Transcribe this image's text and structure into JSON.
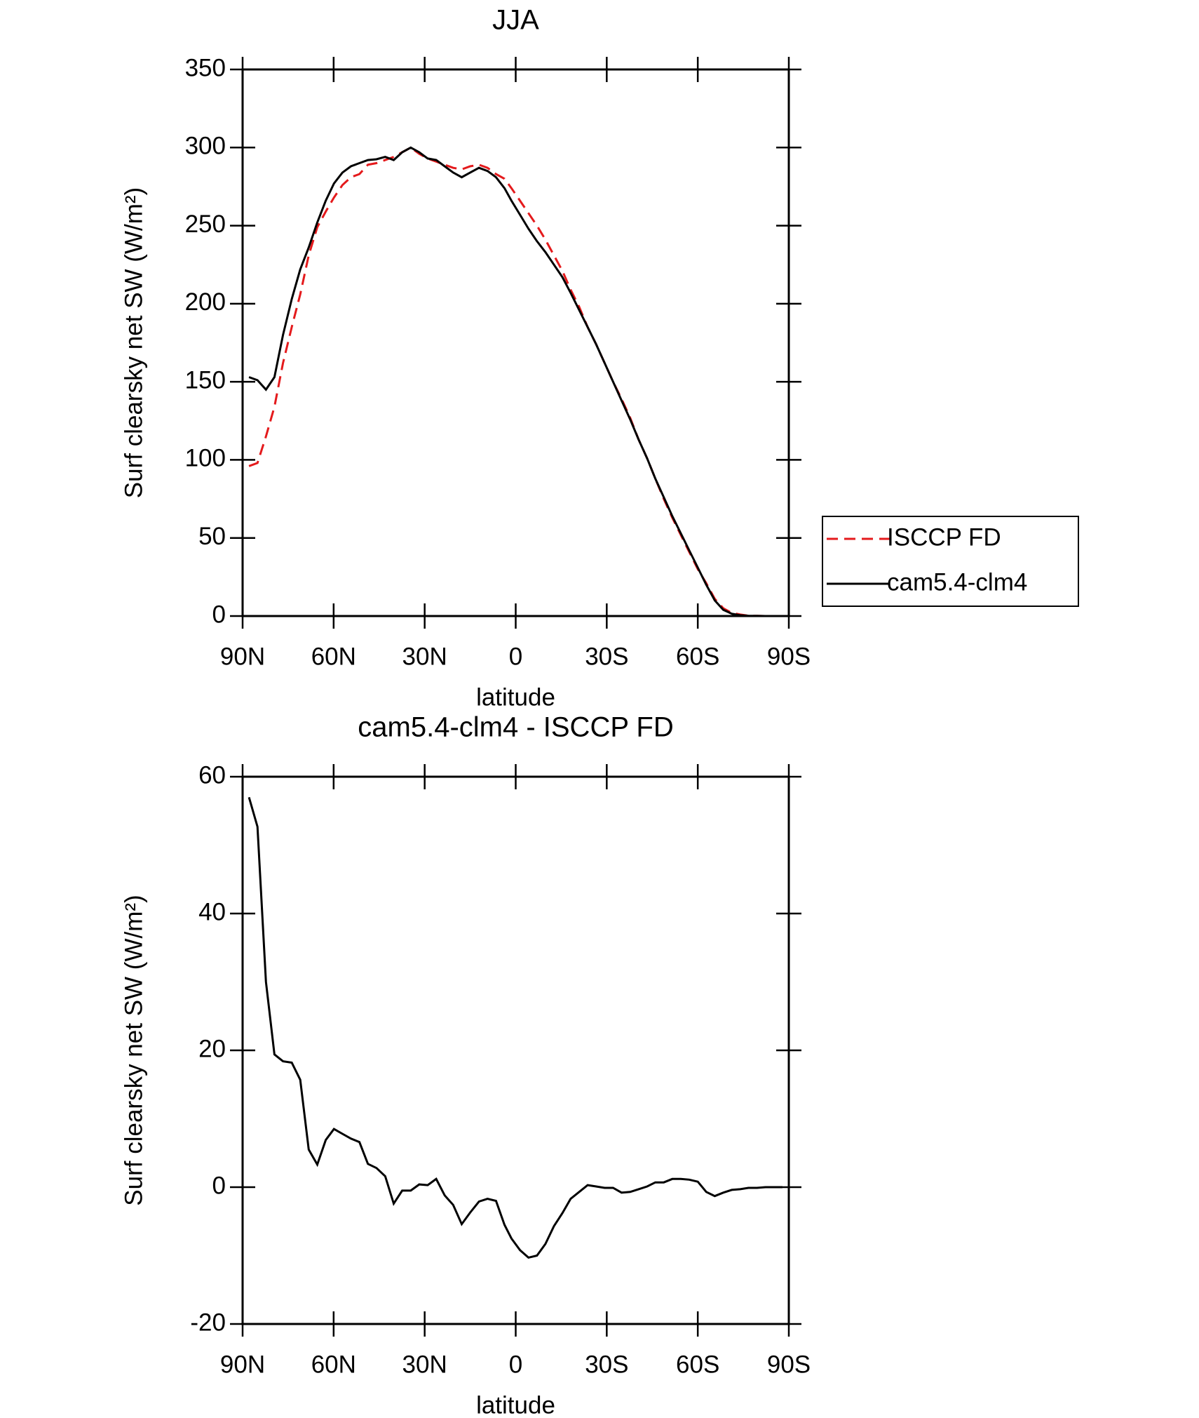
{
  "chart_data": [
    {
      "type": "line",
      "title": "JJA",
      "xlabel": "latitude",
      "ylabel": "Surf clearsky net SW (W/m²)",
      "x": [
        87.9,
        85.1,
        82.3,
        79.5,
        76.7,
        73.8,
        71.0,
        68.2,
        65.4,
        62.6,
        59.9,
        57.1,
        54.3,
        51.5,
        48.7,
        45.9,
        43.0,
        40.2,
        37.4,
        34.6,
        31.8,
        29.0,
        26.2,
        23.4,
        20.6,
        17.8,
        15.0,
        12.1,
        9.3,
        6.5,
        3.7,
        1.4,
        -1.4,
        -4.2,
        -7.0,
        -9.8,
        -12.6,
        -15.4,
        -18.1,
        -20.9,
        -23.7,
        -26.5,
        -29.3,
        -32.1,
        -34.9,
        -37.7,
        -40.5,
        -43.3,
        -46.0,
        -48.8,
        -51.6,
        -54.4,
        -57.2,
        -60.0,
        -62.8,
        -65.6,
        -68.4,
        -71.2,
        -74.0,
        -76.7,
        -79.5,
        -82.3,
        -85.1,
        -87.9
      ],
      "series": [
        {
          "name": "ISCCP FD",
          "color": "#e41a1c",
          "style": "dashed",
          "values": [
            96,
            98,
            115,
            134,
            162,
            185,
            206,
            231,
            249,
            259,
            268,
            276,
            281,
            283,
            289,
            290,
            292,
            294,
            297,
            300,
            296,
            293,
            291,
            289,
            287,
            286,
            288,
            289,
            287,
            283,
            280,
            274,
            266,
            258,
            250,
            241,
            231,
            221,
            209,
            198,
            185,
            174,
            162,
            150,
            139,
            127,
            113,
            101,
            88,
            75,
            63,
            52,
            41,
            30,
            21,
            11,
            5,
            2,
            1,
            0.2,
            0.1,
            0,
            0,
            0
          ]
        },
        {
          "name": "cam5.4-clm4",
          "color": "#000000",
          "style": "solid",
          "values": [
            153,
            151,
            145,
            153,
            180,
            203,
            222,
            236,
            252,
            266,
            277,
            284,
            288,
            290,
            292,
            292.5,
            294,
            292,
            297,
            300,
            297,
            293,
            292,
            288,
            284,
            281,
            284,
            287,
            285,
            281,
            274,
            266,
            257,
            248,
            240,
            233,
            225,
            217,
            207,
            196,
            185,
            174,
            162,
            150,
            138,
            126,
            113,
            101,
            88,
            76,
            64,
            53,
            42,
            31,
            20,
            10,
            4,
            1.5,
            0.5,
            0.2,
            0.1,
            0,
            0,
            0
          ]
        }
      ],
      "xlim": [
        90,
        -90
      ],
      "xticks": [
        {
          "value": 90,
          "label": "90N"
        },
        {
          "value": 60,
          "label": "60N"
        },
        {
          "value": 30,
          "label": "30N"
        },
        0,
        {
          "value": -30,
          "label": "30S"
        },
        {
          "value": -60,
          "label": "60S"
        },
        {
          "value": -90,
          "label": "90S"
        }
      ],
      "ylim": [
        0,
        350
      ],
      "yticks": [
        0,
        50,
        100,
        150,
        200,
        250,
        300,
        350
      ],
      "legend": "right"
    },
    {
      "type": "line",
      "title": "cam5.4-clm4 - ISCCP FD",
      "xlabel": "latitude",
      "ylabel": "Surf clearsky net SW (W/m²)",
      "x": [
        87.9,
        85.1,
        82.3,
        79.5,
        76.7,
        73.8,
        71.0,
        68.2,
        65.4,
        62.6,
        59.9,
        57.1,
        54.3,
        51.5,
        48.7,
        45.9,
        43.0,
        40.2,
        37.4,
        34.6,
        31.8,
        29.0,
        26.2,
        23.4,
        20.6,
        17.8,
        15.0,
        12.1,
        9.3,
        6.5,
        3.7,
        1.4,
        -1.4,
        -4.2,
        -7.0,
        -9.8,
        -12.6,
        -15.4,
        -18.1,
        -20.9,
        -23.7,
        -26.5,
        -29.3,
        -32.1,
        -34.9,
        -37.7,
        -40.5,
        -43.3,
        -46.0,
        -48.8,
        -51.6,
        -54.4,
        -57.2,
        -60.0,
        -62.8,
        -65.6,
        -68.4,
        -71.2,
        -74.0,
        -76.7,
        -79.5,
        -82.3,
        -85.1,
        -87.9
      ],
      "values": [
        57,
        52.7,
        30,
        19.4,
        18.4,
        18.2,
        15.7,
        5.5,
        3.3,
        6.9,
        8.5,
        7.8,
        7.1,
        6.6,
        3.4,
        2.8,
        1.6,
        -2.4,
        -0.5,
        -0.5,
        0.4,
        0.3,
        1.2,
        -1.2,
        -2.6,
        -5.4,
        -3.7,
        -2.1,
        -1.7,
        -2.0,
        -5.5,
        -7.5,
        -9.2,
        -10.3,
        -10,
        -8.3,
        -5.7,
        -3.8,
        -1.7,
        -0.7,
        0.3,
        0.1,
        -0.1,
        -0.1,
        -0.8,
        -0.7,
        -0.3,
        0.1,
        0.7,
        0.7,
        1.2,
        1.2,
        1.1,
        0.8,
        -0.7,
        -1.3,
        -0.8,
        -0.4,
        -0.3,
        -0.1,
        -0.1,
        0,
        0,
        0
      ],
      "color": "#000000",
      "xlim": [
        90,
        -90
      ],
      "xticks": [
        {
          "value": 90,
          "label": "90N"
        },
        {
          "value": 60,
          "label": "60N"
        },
        {
          "value": 30,
          "label": "30N"
        },
        0,
        {
          "value": -30,
          "label": "30S"
        },
        {
          "value": -60,
          "label": "60S"
        },
        {
          "value": -90,
          "label": "90S"
        }
      ],
      "ylim": [
        -20,
        60
      ],
      "yticks": [
        -20,
        0,
        20,
        40,
        60
      ]
    }
  ]
}
